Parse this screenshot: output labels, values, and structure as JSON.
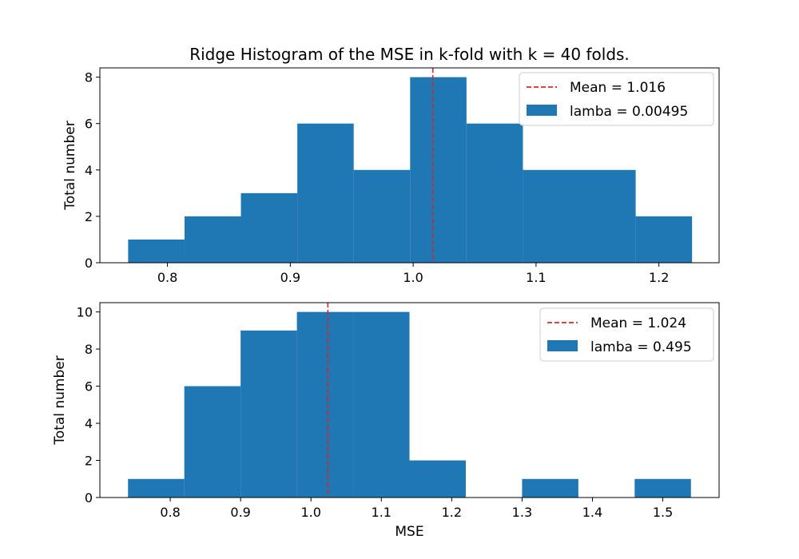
{
  "chart_data": [
    {
      "type": "histogram",
      "title": "Ridge Histogram of the MSE in k-fold with k = 40 folds.",
      "xlabel": "",
      "ylabel": "Total number",
      "xlim": [
        0.745,
        1.249
      ],
      "ylim": [
        0,
        8.4
      ],
      "xticks": [
        0.8,
        0.9,
        1.0,
        1.1,
        1.2
      ],
      "xtick_labels": [
        "0.8",
        "0.9",
        "1.0",
        "1.1",
        "1.2"
      ],
      "yticks": [
        0,
        2,
        4,
        6,
        8
      ],
      "ytick_labels": [
        "0",
        "2",
        "4",
        "6",
        "8"
      ],
      "bin_edges": [
        0.768,
        0.8139,
        0.8598,
        0.9057,
        0.9516,
        0.9975,
        1.0434,
        1.0893,
        1.1352,
        1.1811,
        1.227
      ],
      "counts": [
        1,
        2,
        3,
        6,
        4,
        8,
        6,
        4,
        4,
        2
      ],
      "series": [
        {
          "name": "lamba = 0.00495",
          "color": "#1f77b4",
          "kind": "bars"
        }
      ],
      "mean_line": {
        "label": "Mean = 1.016",
        "value": 1.016,
        "color": "#d62728",
        "style": "dashed"
      },
      "legend": "top-right",
      "grid": false
    },
    {
      "type": "histogram",
      "title": "",
      "xlabel": "MSE",
      "ylabel": "Total number",
      "xlim": [
        0.7,
        1.58
      ],
      "ylim": [
        0,
        10.5
      ],
      "xticks": [
        0.8,
        0.9,
        1.0,
        1.1,
        1.2,
        1.3,
        1.4,
        1.5
      ],
      "xtick_labels": [
        "0.8",
        "0.9",
        "1.0",
        "1.1",
        "1.2",
        "1.3",
        "1.4",
        "1.5"
      ],
      "yticks": [
        0,
        2,
        4,
        6,
        8,
        10
      ],
      "ytick_labels": [
        "0",
        "2",
        "4",
        "6",
        "8",
        "10"
      ],
      "bin_edges": [
        0.74,
        0.82,
        0.9,
        0.98,
        1.06,
        1.14,
        1.22,
        1.3,
        1.38,
        1.46,
        1.54
      ],
      "counts": [
        1,
        6,
        9,
        10,
        10,
        2,
        0,
        1,
        0,
        1
      ],
      "series": [
        {
          "name": "lamba = 0.495",
          "color": "#1f77b4",
          "kind": "bars"
        }
      ],
      "mean_line": {
        "label": "Mean = 1.024",
        "value": 1.024,
        "color": "#d62728",
        "style": "dashed"
      },
      "legend": "top-right",
      "grid": false
    }
  ]
}
